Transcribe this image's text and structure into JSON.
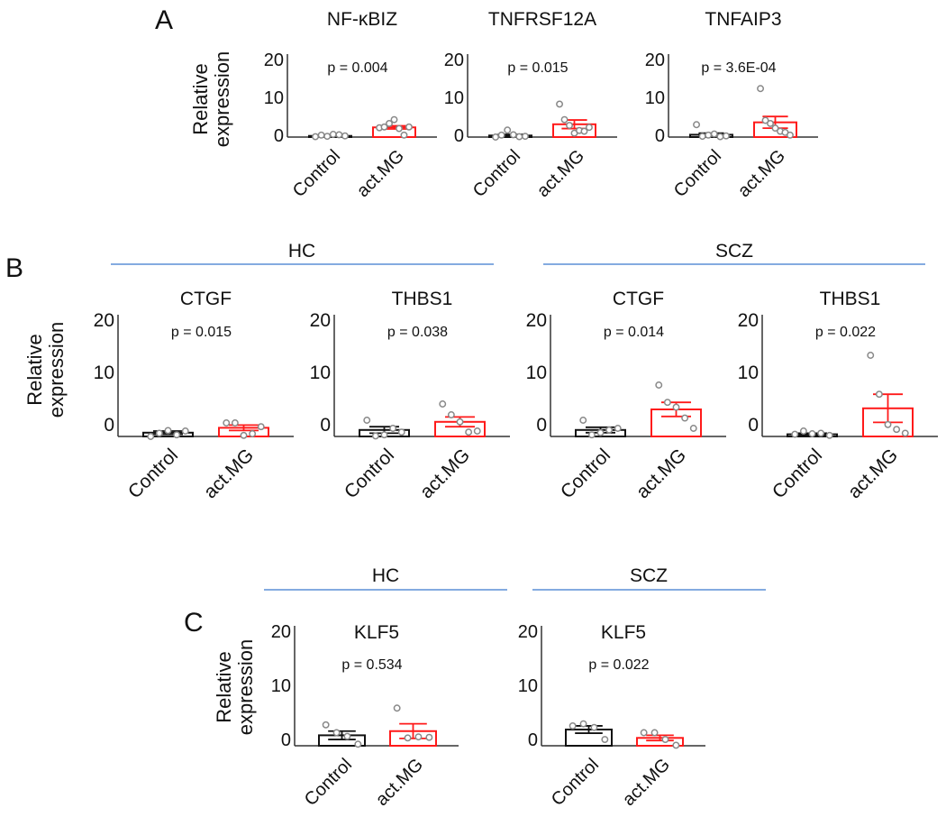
{
  "panels": {
    "A": {
      "letter": "A"
    },
    "B": {
      "letter": "B",
      "groups": [
        "HC",
        "SCZ"
      ]
    },
    "C": {
      "letter": "C",
      "groups": [
        "HC",
        "SCZ"
      ]
    }
  },
  "ylabel": [
    "Relative",
    "expression"
  ],
  "colors": {
    "control": "#111111",
    "treated": "#ff1a1a",
    "point": "#888888",
    "group_line": "#5b8fd6"
  },
  "chart_data": [
    {
      "type": "bar",
      "panel": "A",
      "group": "",
      "title": "NF-κBIZ",
      "p_value": "p = 0.004",
      "categories": [
        "Control",
        "act.MG"
      ],
      "yticks": [
        "0",
        "10",
        "20"
      ],
      "ylim": [
        0,
        20
      ],
      "means": [
        0.3,
        2.5
      ],
      "sems": [
        0.2,
        0.4
      ],
      "points": [
        [
          0.1,
          0.5,
          0.2,
          0.7,
          0.6,
          0.3
        ],
        [
          2.4,
          2.6,
          3.5,
          4.5,
          2.2,
          0.5,
          2.6
        ]
      ]
    },
    {
      "type": "bar",
      "panel": "A",
      "group": "",
      "title": "TNFRSF12A",
      "p_value": "p = 0.015",
      "categories": [
        "Control",
        "act.MG"
      ],
      "yticks": [
        "0",
        "10",
        "20"
      ],
      "ylim": [
        0,
        20
      ],
      "means": [
        0.4,
        3.3
      ],
      "sems": [
        0.3,
        1.1
      ],
      "points": [
        [
          0.0,
          0.5,
          1.8,
          0.6,
          0.1,
          0.2
        ],
        [
          8.5,
          4.5,
          3.0,
          1.0,
          1.7,
          1.5,
          2.5
        ]
      ]
    },
    {
      "type": "bar",
      "panel": "A",
      "group": "",
      "title": "TNFAIP3",
      "p_value": "p = 3.6E-04",
      "categories": [
        "Control",
        "act.MG"
      ],
      "yticks": [
        "0",
        "10",
        "20"
      ],
      "ylim": [
        0,
        20
      ],
      "means": [
        0.6,
        3.8
      ],
      "sems": [
        0.4,
        1.5
      ],
      "points": [
        [
          3.2,
          0.2,
          0.5,
          0.8,
          0.1,
          0.3
        ],
        [
          12.5,
          4.3,
          3.5,
          2.3,
          1.5,
          1.2,
          0.5
        ]
      ]
    },
    {
      "type": "bar",
      "panel": "B",
      "group": "HC",
      "title": "CTGF",
      "p_value": "p = 0.015",
      "categories": [
        "Control",
        "act.MG"
      ],
      "yticks": [
        "0",
        "10",
        "20"
      ],
      "ylim": [
        0,
        20
      ],
      "means": [
        0.7,
        1.6
      ],
      "sems": [
        0.3,
        0.5
      ],
      "points": [
        [
          0.0,
          0.6,
          1.1,
          0.3,
          1.0
        ],
        [
          2.5,
          2.5,
          0.2,
          0.5,
          1.8
        ]
      ]
    },
    {
      "type": "bar",
      "panel": "B",
      "group": "HC",
      "title": "THBS1",
      "p_value": "p = 0.038",
      "categories": [
        "Control",
        "act.MG"
      ],
      "yticks": [
        "0",
        "10",
        "20"
      ],
      "ylim": [
        0,
        20
      ],
      "means": [
        1.2,
        2.7
      ],
      "sems": [
        0.6,
        0.9
      ],
      "points": [
        [
          3.0,
          0.1,
          0.3,
          1.5,
          0.8
        ],
        [
          6.0,
          4.0,
          2.7,
          0.8,
          1.0
        ]
      ]
    },
    {
      "type": "bar",
      "panel": "B",
      "group": "SCZ",
      "title": "CTGF",
      "p_value": "p = 0.014",
      "categories": [
        "Control",
        "act.MG"
      ],
      "yticks": [
        "0",
        "10",
        "20"
      ],
      "ylim": [
        0,
        20
      ],
      "means": [
        1.2,
        5.0
      ],
      "sems": [
        0.5,
        1.3
      ],
      "points": [
        [
          3.0,
          0.3,
          0.7,
          1.2,
          1.5
        ],
        [
          9.5,
          6.3,
          5.4,
          3.4,
          1.5
        ]
      ]
    },
    {
      "type": "bar",
      "panel": "B",
      "group": "SCZ",
      "title": "THBS1",
      "p_value": "p = 0.022",
      "categories": [
        "Control",
        "act.MG"
      ],
      "yticks": [
        "0",
        "10",
        "20"
      ],
      "ylim": [
        0,
        20
      ],
      "means": [
        0.4,
        5.2
      ],
      "sems": [
        0.2,
        2.6
      ],
      "points": [
        [
          0.4,
          1.0,
          0.5,
          0.6,
          0.2
        ],
        [
          15.0,
          7.8,
          2.2,
          1.3,
          0.6
        ]
      ]
    },
    {
      "type": "bar",
      "panel": "C",
      "group": "HC",
      "title": "KLF5",
      "p_value": "p = 0.534",
      "categories": [
        "Control",
        "act.MG"
      ],
      "yticks": [
        "0",
        "10",
        "20"
      ],
      "ylim": [
        0,
        20
      ],
      "means": [
        2.0,
        2.8
      ],
      "sems": [
        0.8,
        1.4
      ],
      "points": [
        [
          4.0,
          2.5,
          1.8,
          0.3
        ],
        [
          7.2,
          1.5,
          1.7,
          1.6
        ]
      ]
    },
    {
      "type": "bar",
      "panel": "C",
      "group": "SCZ",
      "title": "KLF5",
      "p_value": "p = 0.022",
      "categories": [
        "Control",
        "act.MG"
      ],
      "yticks": [
        "0",
        "10",
        "20"
      ],
      "ylim": [
        0,
        20
      ],
      "means": [
        3.1,
        1.5
      ],
      "sems": [
        0.7,
        0.5
      ],
      "points": [
        [
          3.8,
          4.2,
          3.5,
          1.2
        ],
        [
          2.5,
          2.5,
          1.2,
          0.1
        ]
      ]
    }
  ]
}
